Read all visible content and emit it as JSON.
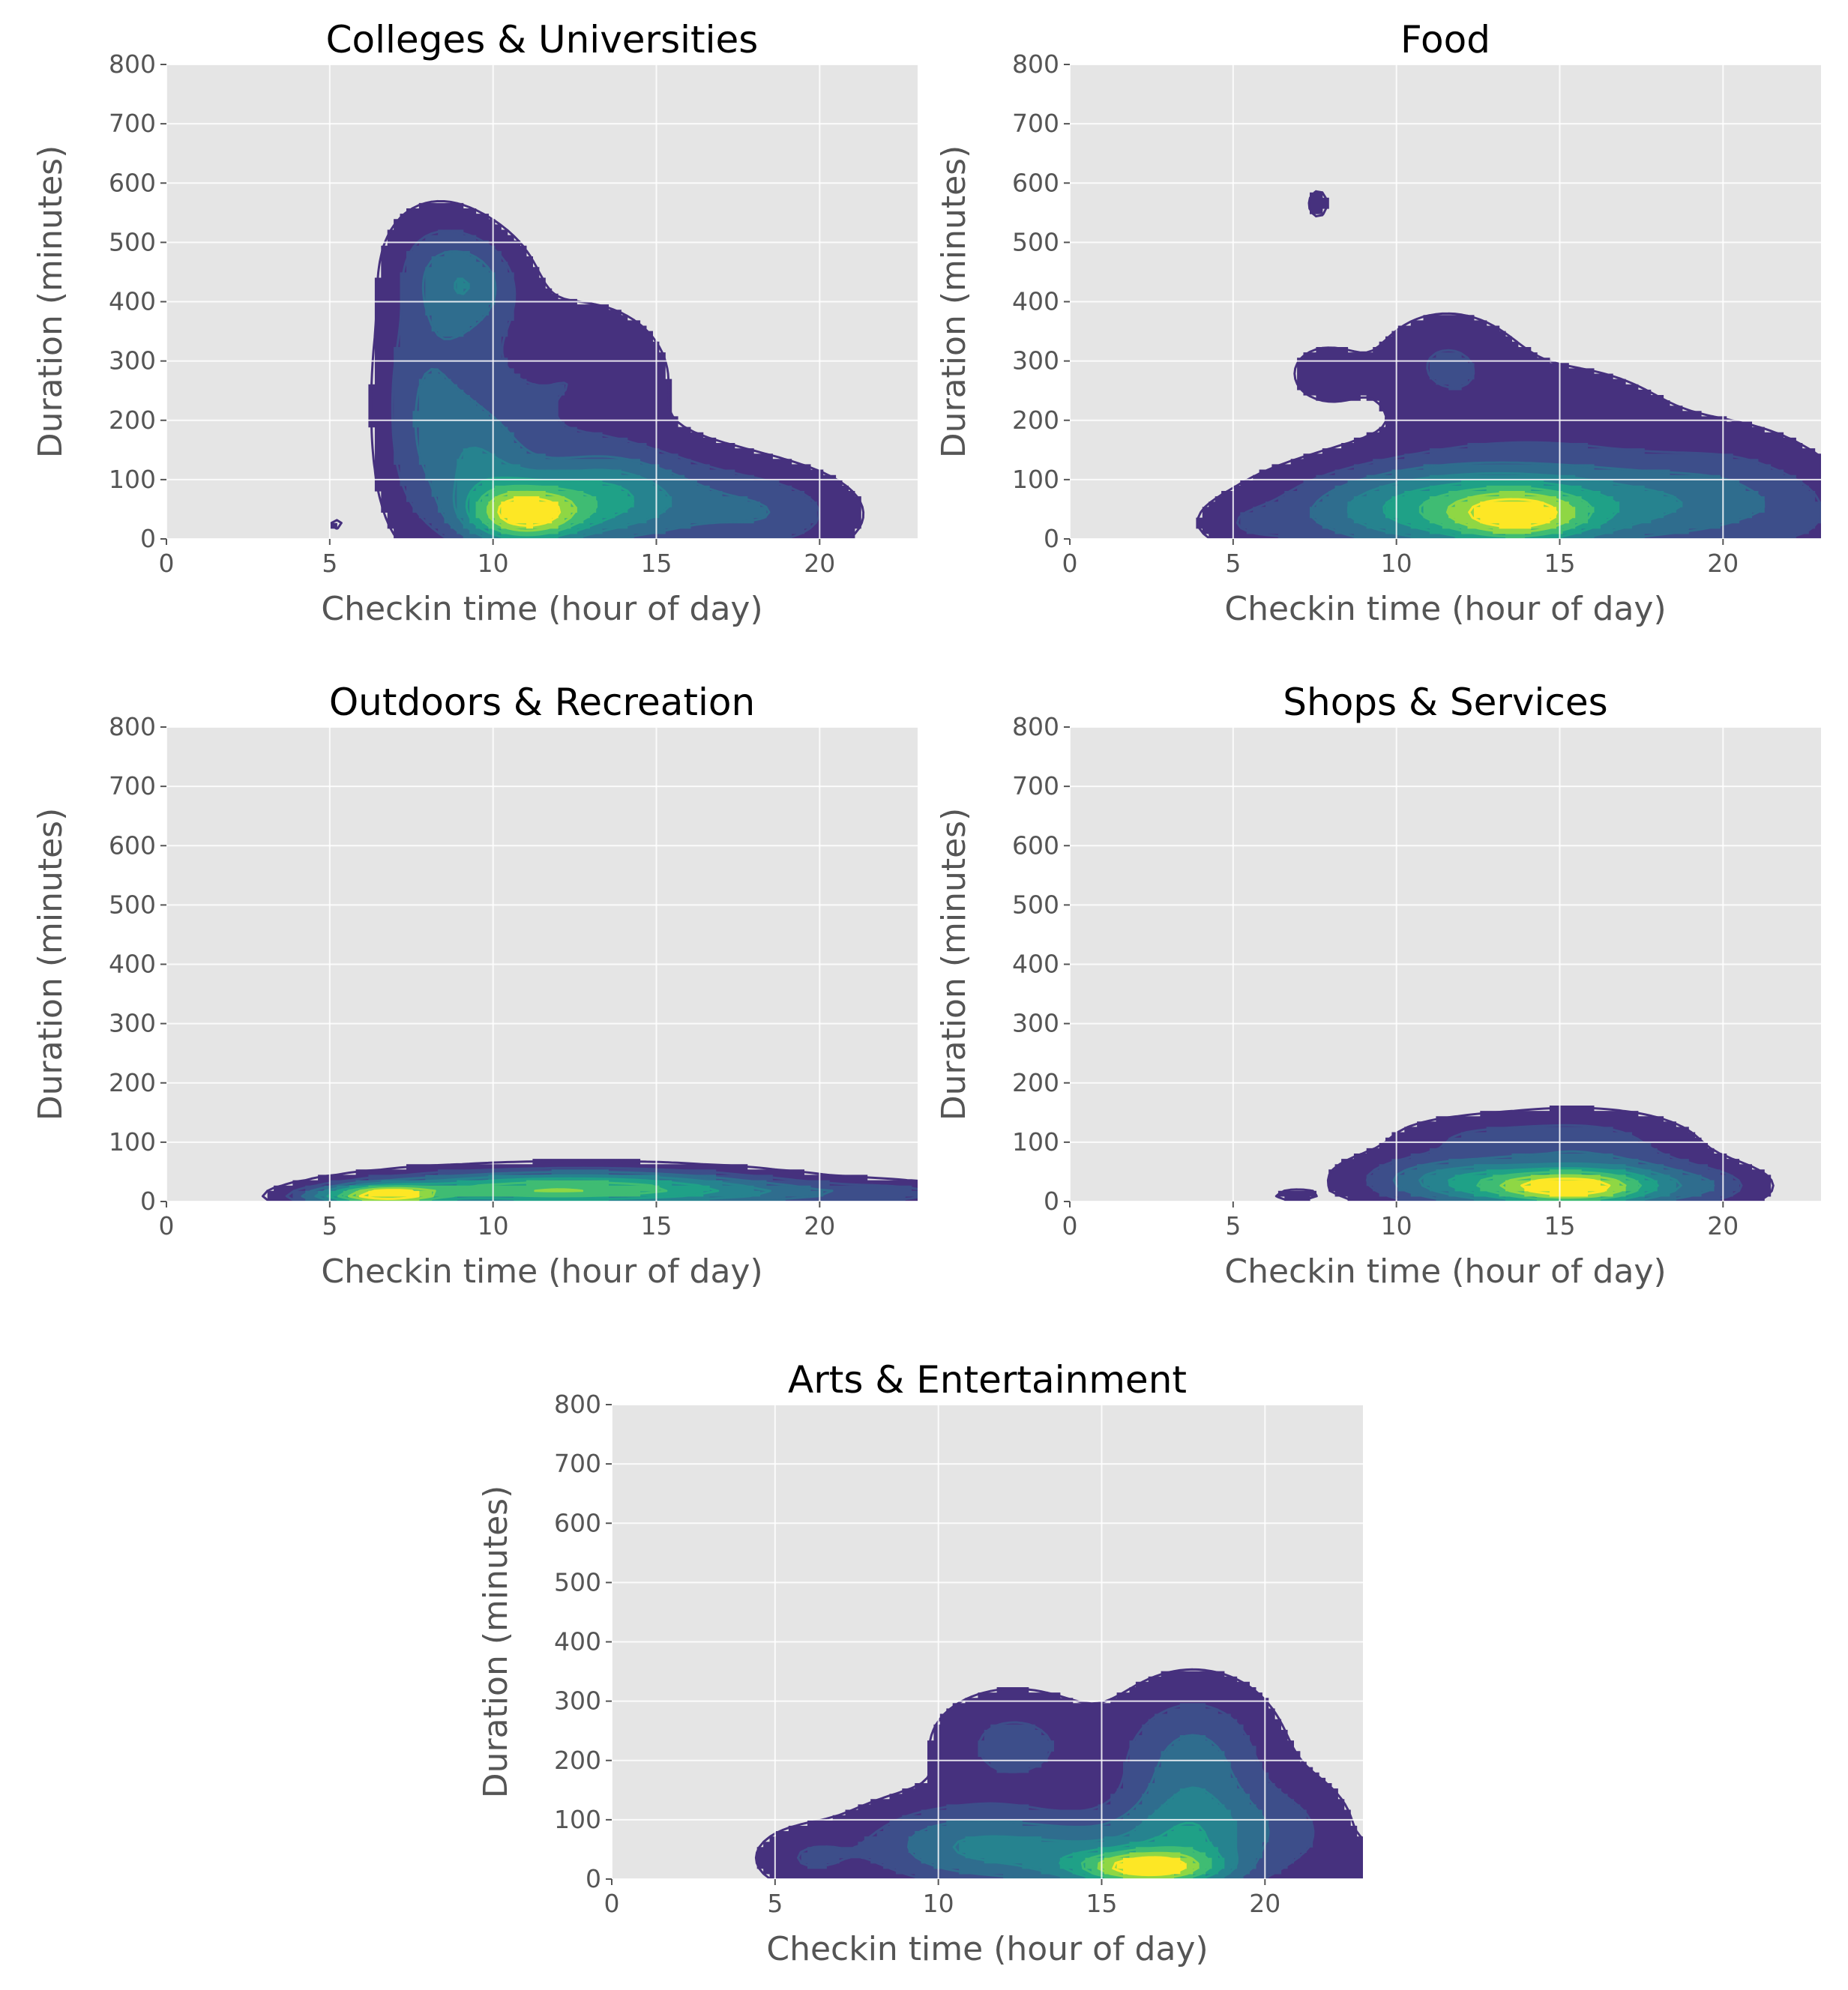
{
  "chart_data": [
    {
      "type": "kde_contour",
      "title": "Colleges & Universities",
      "xlabel": "Checkin time (hour of day)",
      "ylabel": "Duration (minutes)",
      "xlim": [
        0,
        23
      ],
      "ylim": [
        0,
        800
      ],
      "xticks": [
        0,
        5,
        10,
        15,
        20
      ],
      "yticks": [
        0,
        100,
        200,
        300,
        400,
        500,
        600,
        700,
        800
      ],
      "grid": true,
      "levels": 7,
      "support_x": [
        4.8,
        21.5
      ],
      "support_y_max": 555,
      "peak": {
        "x": 11.2,
        "y": 40
      }
    },
    {
      "type": "kde_contour",
      "title": "Food",
      "xlabel": "Checkin time (hour of day)",
      "ylabel": "Duration (minutes)",
      "xlim": [
        0,
        23
      ],
      "ylim": [
        0,
        800
      ],
      "xticks": [
        0,
        5,
        10,
        15,
        20
      ],
      "yticks": [
        0,
        100,
        200,
        300,
        400,
        500,
        600,
        700,
        800
      ],
      "grid": true,
      "levels": 7,
      "support_x": [
        3.7,
        23
      ],
      "support_y_max": 600,
      "peak": {
        "x": 13.8,
        "y": 40
      }
    },
    {
      "type": "kde_contour",
      "title": "Outdoors & Recreation",
      "xlabel": "Checkin time (hour of day)",
      "ylabel": "Duration (minutes)",
      "xlim": [
        0,
        23
      ],
      "ylim": [
        0,
        800
      ],
      "xticks": [
        0,
        5,
        10,
        15,
        20
      ],
      "yticks": [
        0,
        100,
        200,
        300,
        400,
        500,
        600,
        700,
        800
      ],
      "grid": true,
      "levels": 7,
      "support_x": [
        3.4,
        23
      ],
      "support_y_max": 68,
      "peak": {
        "x": 6.8,
        "y": 10
      }
    },
    {
      "type": "kde_contour",
      "title": "Shops & Services",
      "xlabel": "Checkin time (hour of day)",
      "ylabel": "Duration (minutes)",
      "xlim": [
        0,
        23
      ],
      "ylim": [
        0,
        800
      ],
      "xticks": [
        0,
        5,
        10,
        15,
        20
      ],
      "yticks": [
        0,
        100,
        200,
        300,
        400,
        500,
        600,
        700,
        800
      ],
      "grid": true,
      "levels": 7,
      "support_x": [
        6.1,
        21.3
      ],
      "support_y_max": 170,
      "peak": {
        "x": 15.3,
        "y": 22
      }
    },
    {
      "type": "kde_contour",
      "title": "Arts & Entertainment",
      "xlabel": "Checkin time (hour of day)",
      "ylabel": "Duration (minutes)",
      "xlim": [
        0,
        23
      ],
      "ylim": [
        0,
        800
      ],
      "xticks": [
        0,
        5,
        10,
        15,
        20
      ],
      "yticks": [
        0,
        100,
        200,
        300,
        400,
        500,
        600,
        700,
        800
      ],
      "grid": true,
      "levels": 7,
      "support_x": [
        4.2,
        23
      ],
      "support_y_max": 310,
      "peak": {
        "x": 16.3,
        "y": 20
      }
    }
  ],
  "colors": {
    "panel_background": "#e5e5e5",
    "grid": "#ffffff",
    "tick_label": "#555555",
    "title": "#000000",
    "levels": [
      "#46317e",
      "#3d4e8a",
      "#2f6d8e",
      "#26838f",
      "#1fa187",
      "#3fbc73",
      "#8fd744",
      "#fde725"
    ]
  }
}
